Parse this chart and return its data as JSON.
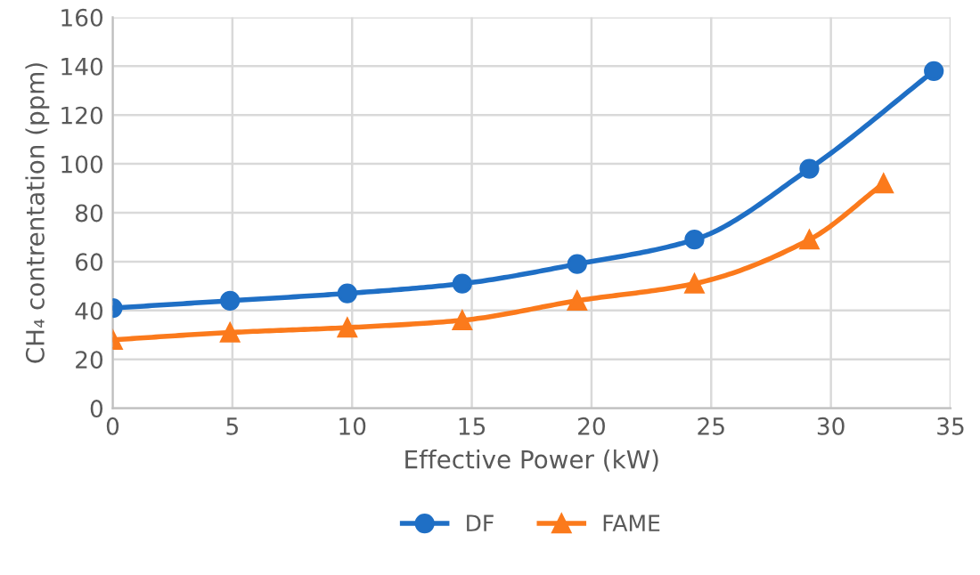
{
  "chart_data": {
    "type": "line",
    "xlabel": "Effective Power (kW)",
    "ylabel": "CH₄ contrentation (ppm)",
    "series": [
      {
        "name": "DF",
        "color": "#1f6fc5",
        "marker": "circle",
        "x": [
          0,
          4.9,
          9.8,
          14.6,
          19.4,
          24.3,
          29.1,
          34.3
        ],
        "values": [
          41,
          44,
          47,
          51,
          59,
          69,
          98,
          138
        ]
      },
      {
        "name": "FAME",
        "color": "#fb7a1c",
        "marker": "triangle",
        "x": [
          0,
          4.9,
          9.8,
          14.6,
          19.4,
          24.3,
          29.1,
          32.2
        ],
        "values": [
          28,
          31,
          33,
          36,
          44,
          51,
          69,
          92
        ]
      }
    ],
    "xlim": [
      0,
      35
    ],
    "xticks": [
      0,
      5,
      10,
      15,
      20,
      25,
      30,
      35
    ],
    "ylim": [
      0,
      160
    ],
    "yticks": [
      0,
      20,
      40,
      60,
      80,
      100,
      120,
      140,
      160
    ],
    "grid": true,
    "legend": "bottom",
    "line_style": "solid"
  }
}
